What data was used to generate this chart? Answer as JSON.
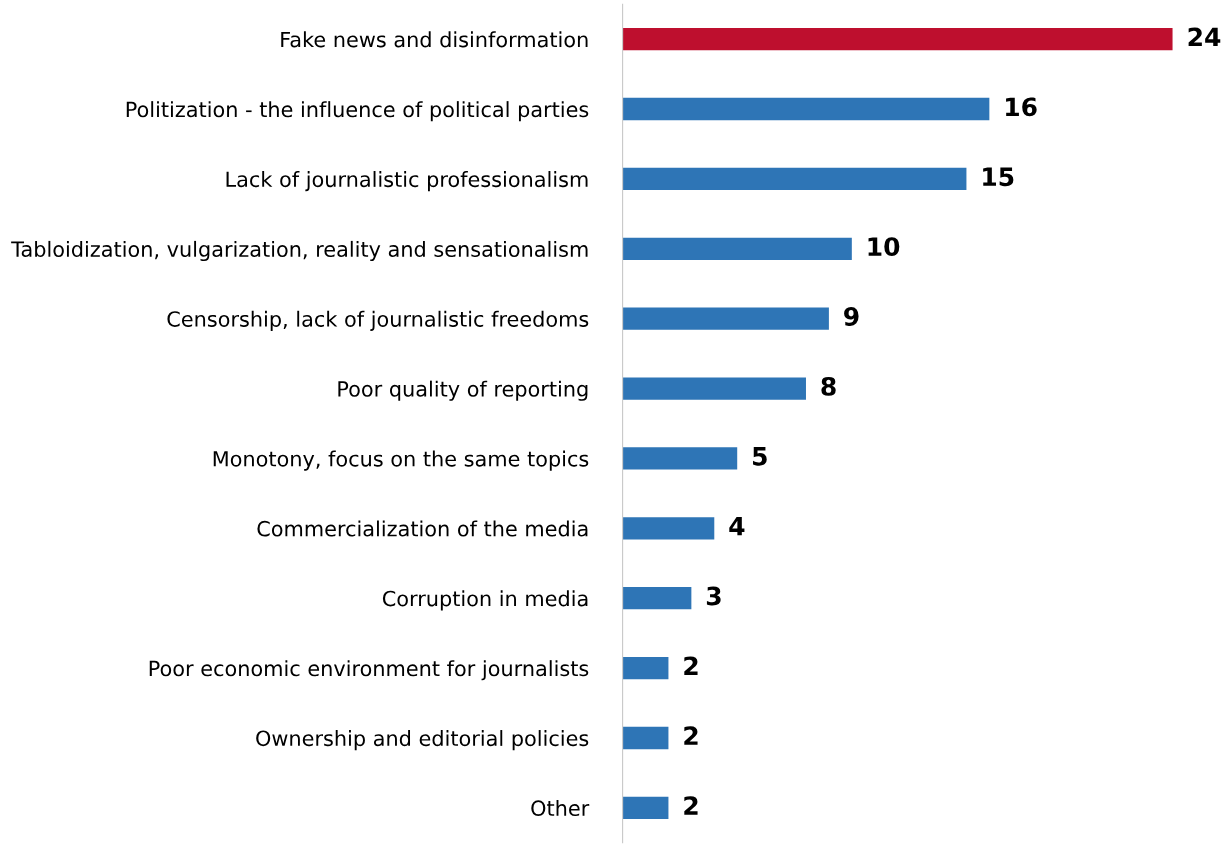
{
  "chart_data": {
    "type": "bar",
    "orientation": "horizontal",
    "categories": [
      "Fake news and disinformation",
      "Politization - the influence of political parties",
      "Lack of journalistic professionalism",
      "Tabloidization, vulgarization, reality and sensationalism",
      "Censorship, lack of journalistic freedoms",
      "Poor quality of reporting",
      "Monotony, focus on the same topics",
      "Commercialization of the media",
      "Corruption in media",
      "Poor economic environment for journalists",
      "Ownership and editorial policies",
      "Other"
    ],
    "values": [
      24,
      16,
      15,
      10,
      9,
      8,
      5,
      4,
      3,
      2,
      2,
      2
    ],
    "colors": [
      "#be0f2e",
      "#2e75b6",
      "#2e75b6",
      "#2e75b6",
      "#2e75b6",
      "#2e75b6",
      "#2e75b6",
      "#2e75b6",
      "#2e75b6",
      "#2e75b6",
      "#2e75b6",
      "#2e75b6"
    ],
    "data_labels": true,
    "grid": false,
    "legend": false
  }
}
